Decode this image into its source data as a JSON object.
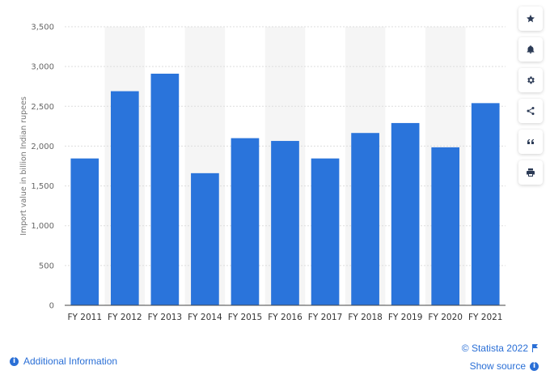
{
  "chart_data": {
    "type": "bar",
    "categories": [
      "FY 2011",
      "FY 2012",
      "FY 2013",
      "FY 2014",
      "FY 2015",
      "FY 2016",
      "FY 2017",
      "FY 2018",
      "FY 2019",
      "FY 2020",
      "FY 2021"
    ],
    "values": [
      1845,
      2690,
      2910,
      1660,
      2100,
      2065,
      1845,
      2165,
      2290,
      1985,
      2540
    ],
    "ylabel": "Import value in billion Indian rupees",
    "ylim": [
      0,
      3500
    ],
    "yticks": [
      "0",
      "500",
      "1,000",
      "1,500",
      "2,000",
      "2,500",
      "3,000",
      "3,500"
    ],
    "colors": {
      "bar": "#2a74db",
      "band": "#f5f5f5",
      "grid": "#dddddd"
    },
    "grid": true
  },
  "sidebar": [
    {
      "icon": "star-icon"
    },
    {
      "icon": "bell-icon"
    },
    {
      "icon": "gear-icon"
    },
    {
      "icon": "share-icon"
    },
    {
      "icon": "quote-icon"
    },
    {
      "icon": "print-icon"
    }
  ],
  "footer": {
    "additional_info": "Additional Information",
    "copyright": "© Statista 2022",
    "show_source": "Show source"
  }
}
